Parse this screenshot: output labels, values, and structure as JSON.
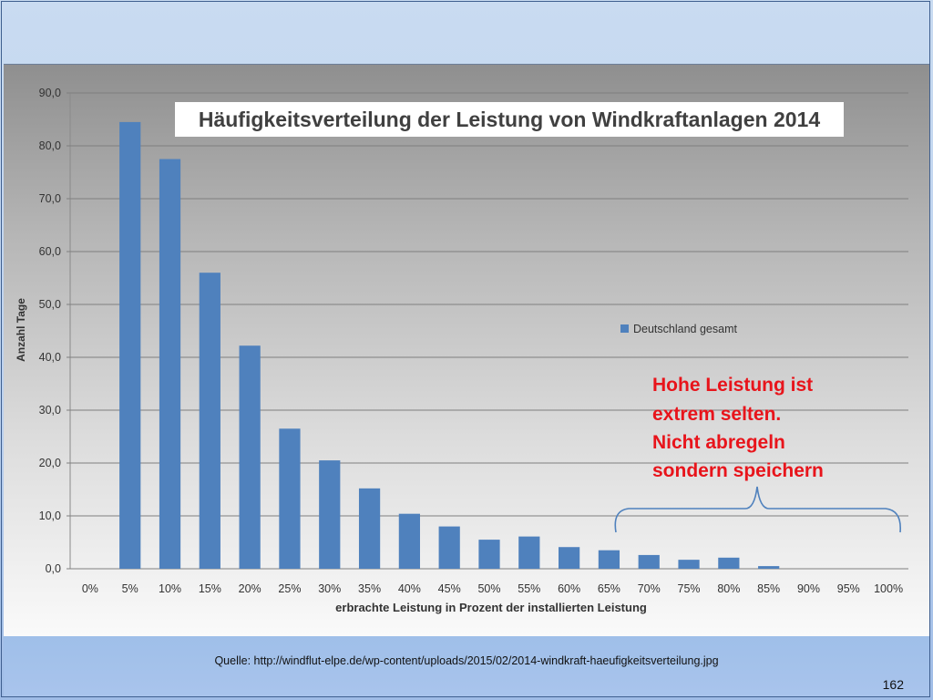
{
  "chart_data": {
    "type": "bar",
    "title": "Häufigkeitsverteilung der Leistung von Windkraftanlagen 2014",
    "xlabel": "erbrachte Leistung in Prozent der installierten Leistung",
    "ylabel": "Anzahl Tage",
    "ylim": [
      0,
      90
    ],
    "yticks": [
      "0,0",
      "10,0",
      "20,0",
      "30,0",
      "40,0",
      "50,0",
      "60,0",
      "70,0",
      "80,0",
      "90,0"
    ],
    "categories": [
      "0%",
      "5%",
      "10%",
      "15%",
      "20%",
      "25%",
      "30%",
      "35%",
      "40%",
      "45%",
      "50%",
      "55%",
      "60%",
      "65%",
      "70%",
      "75%",
      "80%",
      "85%",
      "90%",
      "95%",
      "100%"
    ],
    "series": [
      {
        "name": "Deutschland gesamt",
        "values": [
          0,
          84.5,
          77.5,
          56,
          42.2,
          26.5,
          20.5,
          15.2,
          10.4,
          8,
          5.5,
          6.1,
          4.1,
          3.5,
          2.6,
          1.7,
          2.1,
          0.5,
          0,
          0,
          0
        ]
      }
    ],
    "legend_position": "right",
    "grid": true,
    "annotation": [
      "Hohe Leistung ist",
      "extrem selten.",
      "Nicht abregeln",
      "sondern speichern"
    ]
  },
  "colors": {
    "bar": "#4f81bd",
    "annotation": "#e8141b",
    "grid": "#7f7f7f"
  },
  "footer": {
    "source": "Quelle: http://windflut-elpe.de/wp-content/uploads/2015/02/2014-windkraft-haeufigkeitsverteilung.jpg",
    "page_number": "162"
  }
}
